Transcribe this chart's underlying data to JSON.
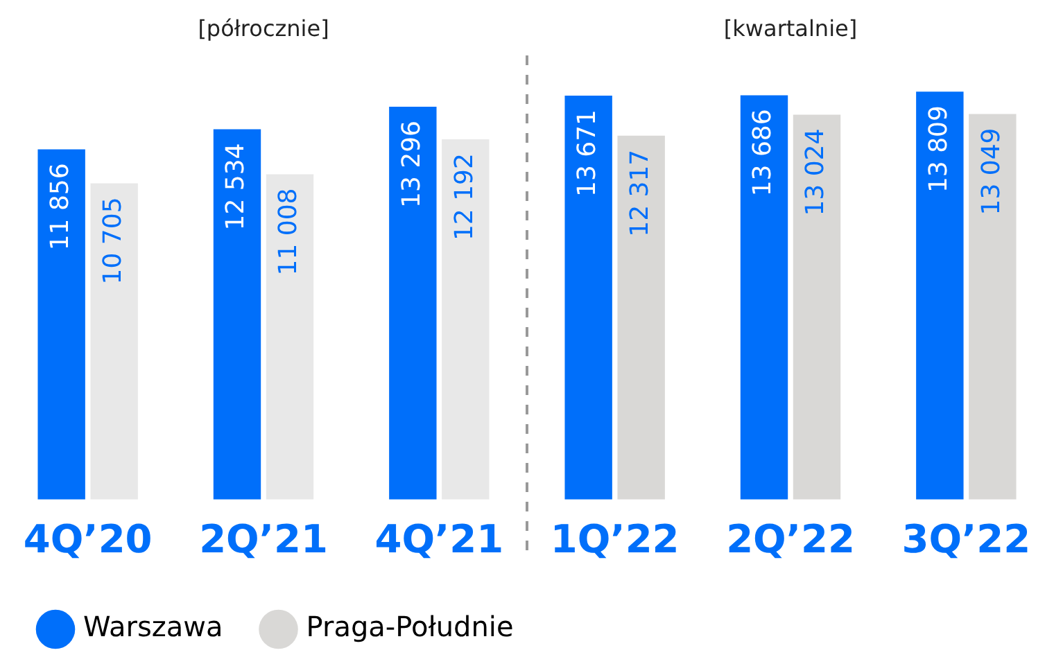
{
  "chart_data": {
    "type": "bar",
    "categories": [
      "4Q’20",
      "2Q’21",
      "4Q’21",
      "1Q’22",
      "2Q’22",
      "3Q’22"
    ],
    "series": [
      {
        "name": "Warszawa",
        "color": "#006ffa",
        "values": [
          11856,
          12534,
          13296,
          13671,
          13686,
          13809
        ],
        "value_labels": [
          "11 856",
          "12 534",
          "13 296",
          "13 671",
          "13 686",
          "13 809"
        ]
      },
      {
        "name": "Praga-Południe",
        "color": "#d9d8d6",
        "colors": [
          "#e8e8e8",
          "#e8e8e8",
          "#e8e8e8",
          "#d9d8d6",
          "#d9d8d6",
          "#d9d8d6"
        ],
        "values": [
          10705,
          11008,
          12192,
          12317,
          13024,
          13049
        ],
        "value_labels": [
          "10 705",
          "11 008",
          "12 192",
          "12 317",
          "13 024",
          "13 049"
        ]
      }
    ],
    "annotations": [
      "[półrocznie]",
      "[kwartalnie]"
    ],
    "legend": "bottom left",
    "tick_labels": "x"
  }
}
